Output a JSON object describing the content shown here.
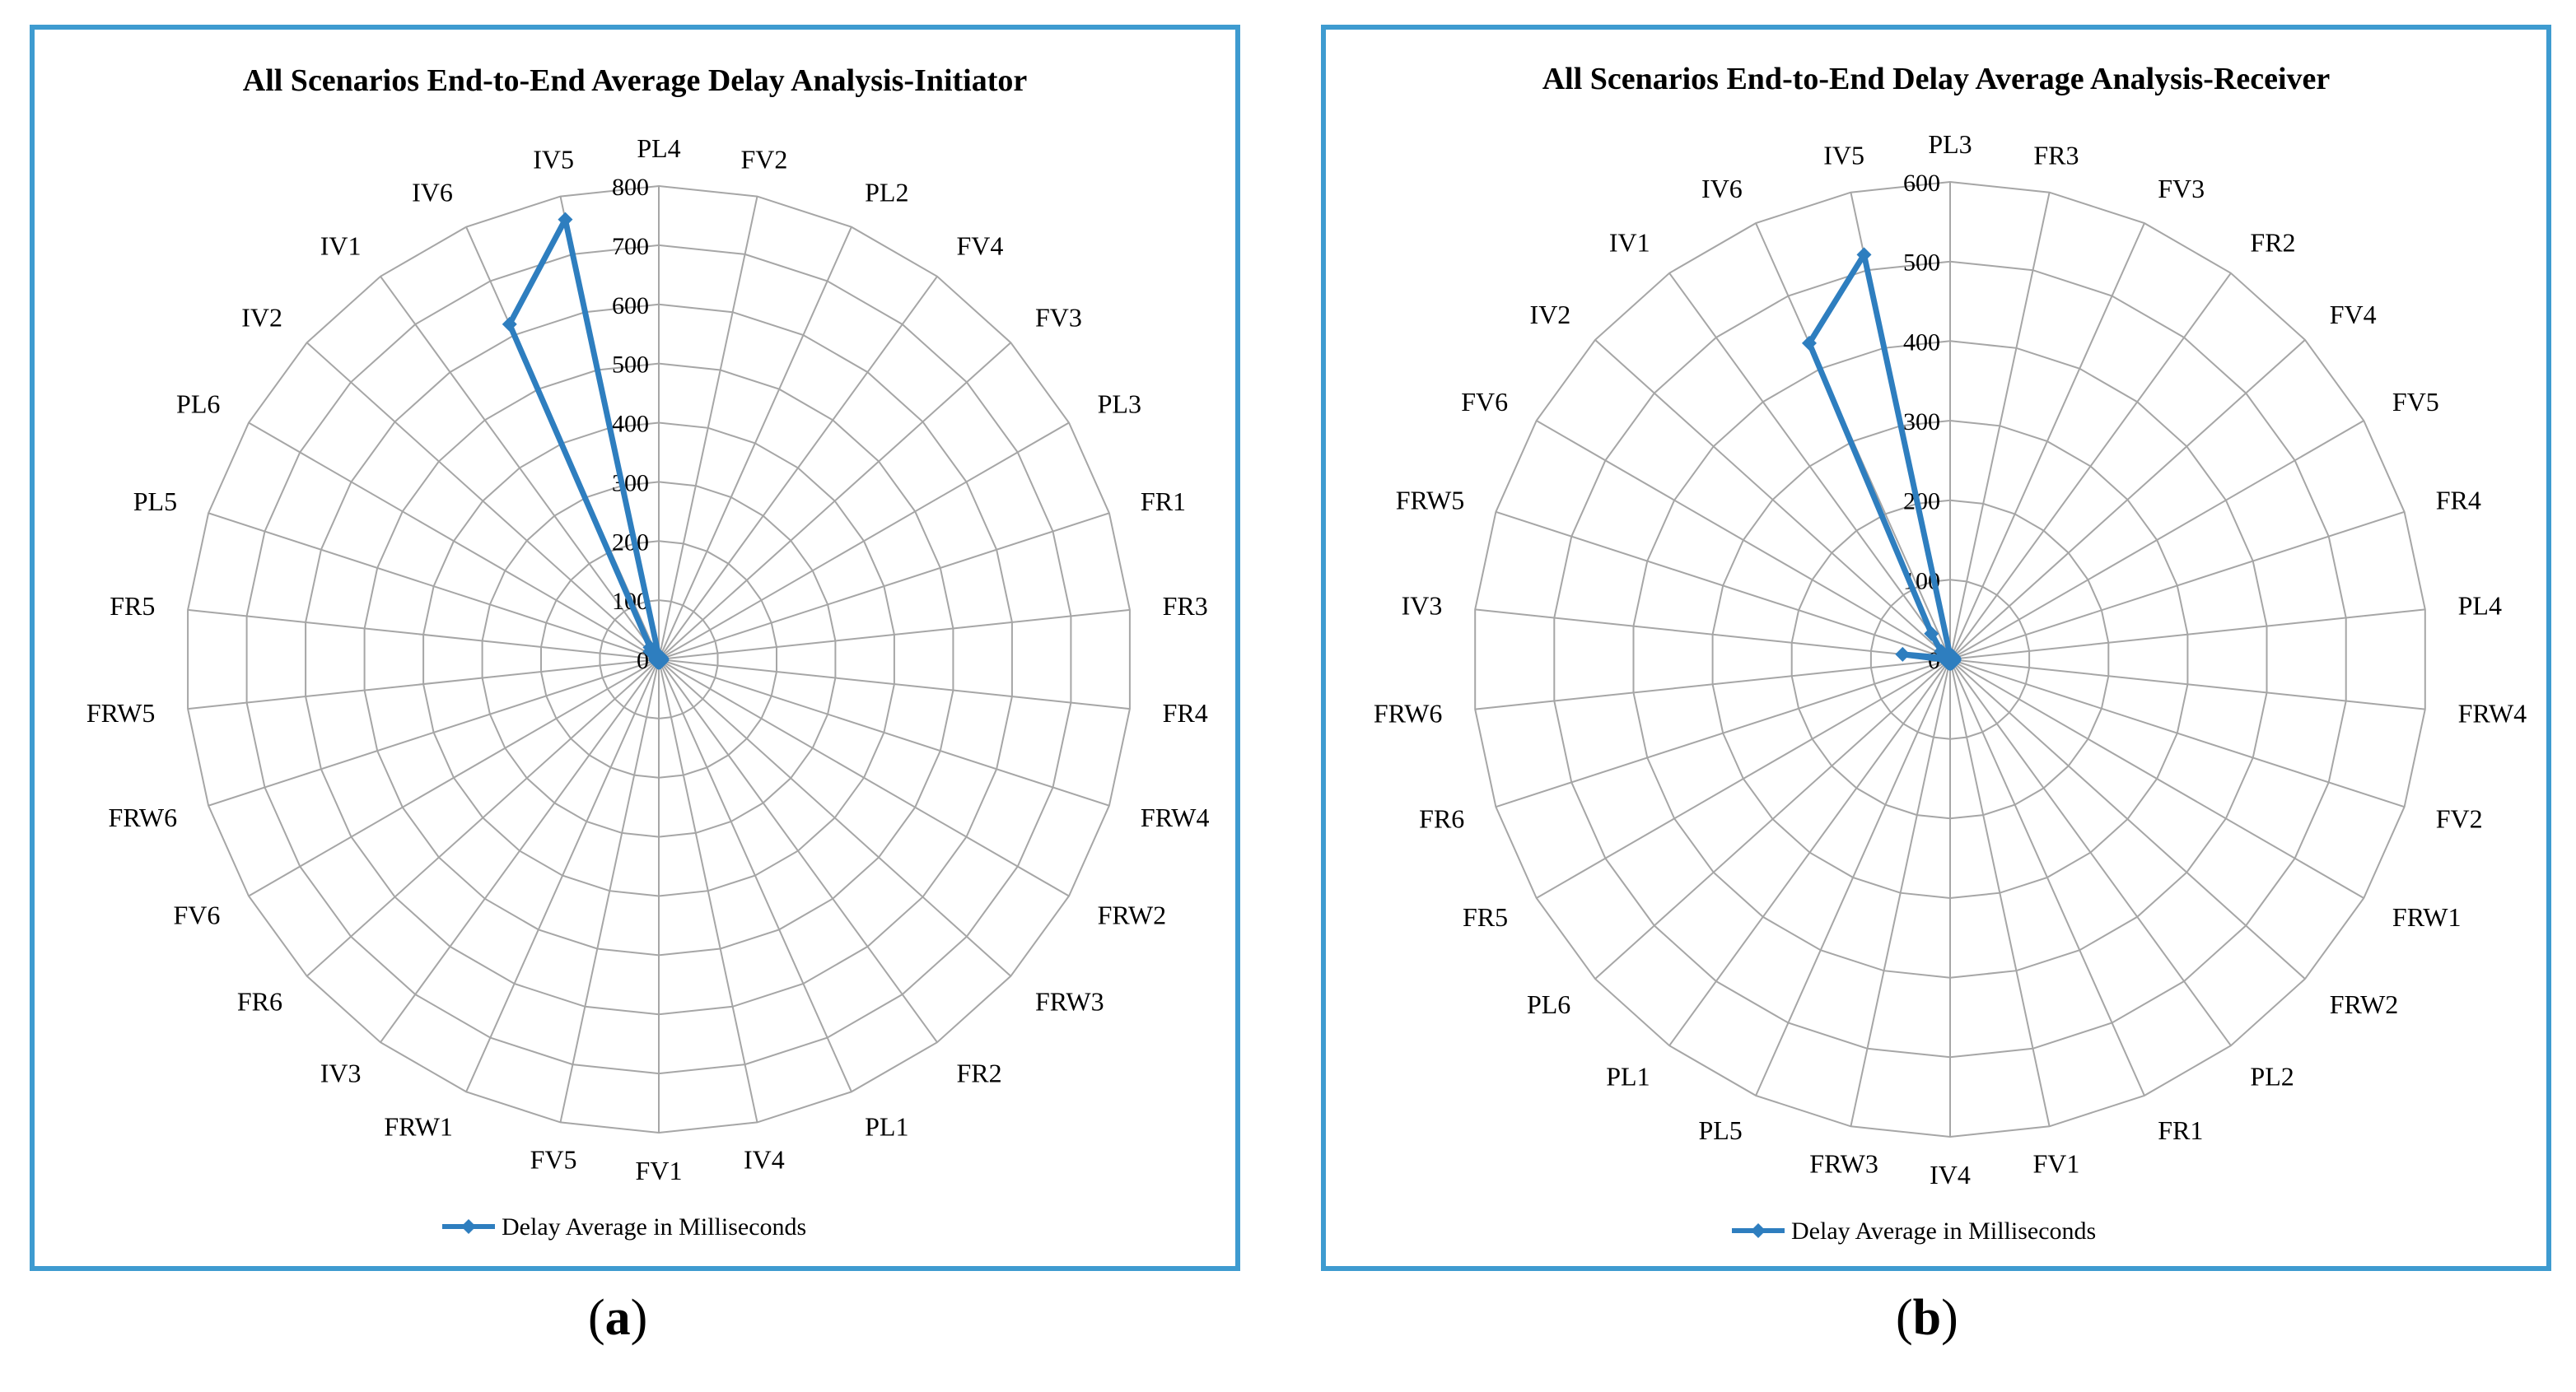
{
  "line_color": "#2e7ebf",
  "grid_color": "#a6a6a6",
  "frame_color": "#3e9bd0",
  "captions": {
    "a_open": "(",
    "a_letter": "a",
    "a_close": ")",
    "b_open": "(",
    "b_letter": "b",
    "b_close": ")"
  },
  "chart_data": [
    {
      "type": "radar",
      "title": "All Scenarios End-to-End Average Delay Analysis-Initiator",
      "categories": [
        "PL4",
        "FV2",
        "PL2",
        "FV4",
        "FV3",
        "PL3",
        "FR1",
        "FR3",
        "FR4",
        "FRW4",
        "FRW2",
        "FRW3",
        "FR2",
        "PL1",
        "IV4",
        "FV1",
        "FV5",
        "FRW1",
        "IV3",
        "FR6",
        "FV6",
        "FRW6",
        "FRW5",
        "FR5",
        "PL5",
        "PL6",
        "IV2",
        "IV1",
        "IV6",
        "IV5"
      ],
      "radial_ticks": [
        "0",
        "100",
        "200",
        "300",
        "400",
        "500",
        "600",
        "700",
        "800"
      ],
      "rmax": 800,
      "series": [
        {
          "name": "Delay Average in Milliseconds",
          "values": [
            5,
            5,
            5,
            5,
            5,
            5,
            5,
            5,
            5,
            5,
            5,
            5,
            5,
            5,
            5,
            5,
            5,
            5,
            5,
            5,
            5,
            5,
            5,
            5,
            5,
            5,
            20,
            25,
            620,
            760
          ]
        }
      ],
      "legend": "bottom",
      "grid": true
    },
    {
      "type": "radar",
      "title": "All Scenarios End-to-End Delay Average Analysis-Receiver",
      "categories": [
        "PL3",
        "FR3",
        "FV3",
        "FR2",
        "FV4",
        "FV5",
        "FR4",
        "PL4",
        "FRW4",
        "FV2",
        "FRW1",
        "FRW2",
        "PL2",
        "FR1",
        "FV1",
        "IV4",
        "FRW3",
        "PL5",
        "PL1",
        "PL6",
        "FR5",
        "FR6",
        "FRW6",
        "IV3",
        "FRW5",
        "FV6",
        "IV2",
        "IV1",
        "IV6",
        "IV5"
      ],
      "radial_ticks": [
        "0",
        "100",
        "200",
        "300",
        "400",
        "500",
        "600"
      ],
      "rmax": 600,
      "series": [
        {
          "name": "Delay Average in Milliseconds",
          "values": [
            5,
            5,
            5,
            5,
            5,
            5,
            5,
            5,
            5,
            5,
            5,
            5,
            5,
            5,
            5,
            5,
            5,
            5,
            5,
            5,
            5,
            5,
            5,
            60,
            5,
            10,
            15,
            40,
            435,
            520
          ]
        }
      ],
      "legend": "bottom",
      "grid": true
    }
  ]
}
